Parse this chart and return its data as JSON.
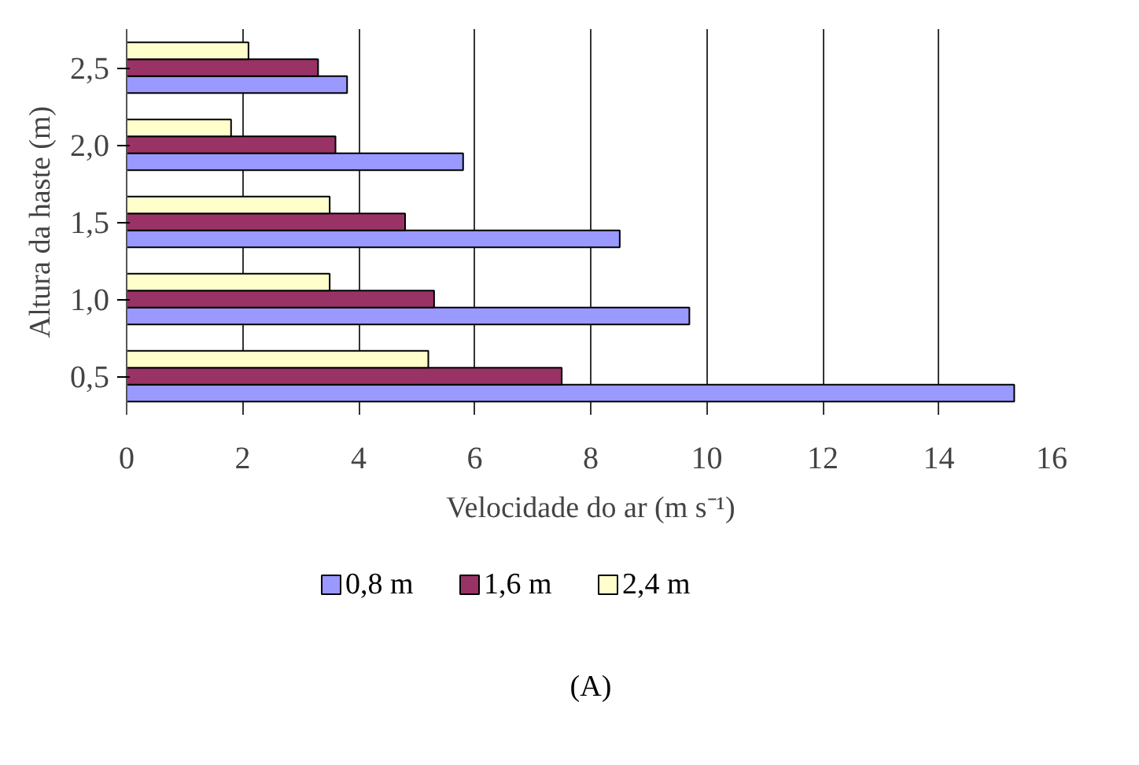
{
  "chart_data": {
    "type": "bar",
    "orientation": "horizontal",
    "xlabel": "Velocidade do ar (m s⁻¹)",
    "ylabel": "Altura da haste (m)",
    "categories": [
      "2,5",
      "2,0",
      "1,5",
      "1,0",
      "0,5"
    ],
    "series": [
      {
        "name": "0,8 m",
        "color": "#9999ff",
        "values": [
          3.8,
          5.8,
          8.5,
          9.7,
          15.3
        ]
      },
      {
        "name": "1,6 m",
        "color": "#993366",
        "values": [
          3.3,
          3.6,
          4.8,
          5.3,
          7.5
        ]
      },
      {
        "name": "2,4 m",
        "color": "#ffffcc",
        "values": [
          2.1,
          1.8,
          3.5,
          3.5,
          5.2
        ]
      }
    ],
    "xlim": [
      0,
      16
    ],
    "xticks": [
      0,
      2,
      4,
      6,
      8,
      10,
      12,
      14,
      16
    ],
    "grid": "x",
    "legend": "bottom",
    "annotations": [
      "(A)"
    ]
  }
}
